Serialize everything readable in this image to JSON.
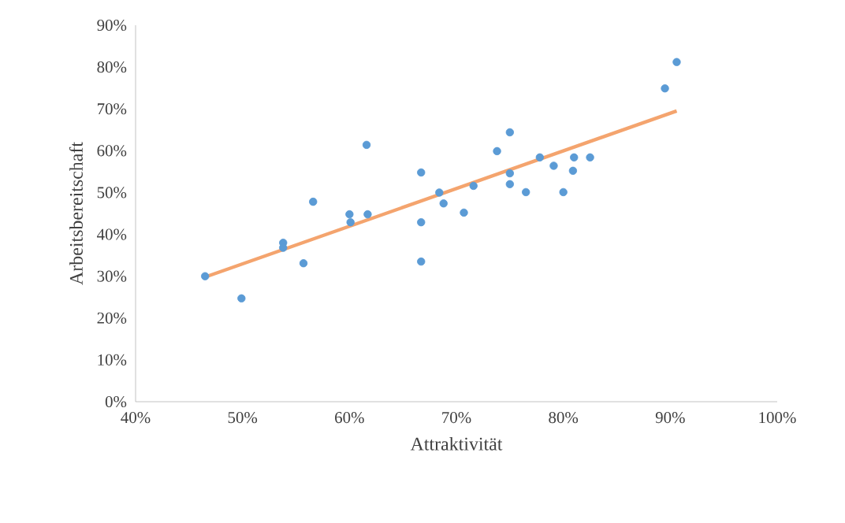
{
  "chart_data": {
    "type": "scatter",
    "xlabel": "Attraktivität",
    "ylabel": "Arbeitsbereitschaft",
    "series": [
      {
        "color": "#5b9bd5",
        "marker": "circle",
        "x": [
          46.5,
          49.9,
          53.8,
          53.8,
          55.7,
          56.6,
          60.0,
          60.1,
          61.6,
          61.7,
          66.7,
          66.7,
          66.7,
          68.4,
          68.8,
          70.7,
          71.6,
          73.8,
          75.0,
          75.0,
          75.0,
          76.5,
          77.8,
          79.1,
          80.0,
          80.9,
          81.0,
          82.5,
          89.5,
          90.6
        ],
        "values": [
          30.0,
          24.7,
          38.0,
          36.8,
          33.1,
          47.8,
          44.8,
          42.9,
          61.4,
          44.8,
          54.8,
          42.9,
          33.5,
          50.0,
          47.4,
          45.2,
          51.6,
          59.9,
          64.4,
          54.6,
          52.0,
          50.1,
          58.4,
          56.4,
          50.1,
          55.2,
          58.4,
          58.4,
          74.9,
          81.2
        ]
      },
      {
        "type": "line",
        "color": "#f4a46e",
        "marker": "none",
        "x": [
          46.5,
          90.6
        ],
        "values": [
          29.8,
          69.5
        ]
      }
    ],
    "xlim": [
      40,
      100
    ],
    "ylim": [
      0,
      90
    ],
    "xticks": [
      {
        "value": 40,
        "label": "40%"
      },
      {
        "value": 50,
        "label": "50%"
      },
      {
        "value": 60,
        "label": "60%"
      },
      {
        "value": 70,
        "label": "70%"
      },
      {
        "value": 80,
        "label": "80%"
      },
      {
        "value": 90,
        "label": "90%"
      },
      {
        "value": 100,
        "label": "100%"
      }
    ],
    "yticks": [
      {
        "value": 0,
        "label": "0%"
      },
      {
        "value": 10,
        "label": "10%"
      },
      {
        "value": 20,
        "label": "20%"
      },
      {
        "value": 30,
        "label": "30%"
      },
      {
        "value": 40,
        "label": "40%"
      },
      {
        "value": 50,
        "label": "50%"
      },
      {
        "value": 60,
        "label": "60%"
      },
      {
        "value": 70,
        "label": "70%"
      },
      {
        "value": 80,
        "label": "80%"
      },
      {
        "value": 90,
        "label": "90%"
      }
    ],
    "grid": false
  }
}
